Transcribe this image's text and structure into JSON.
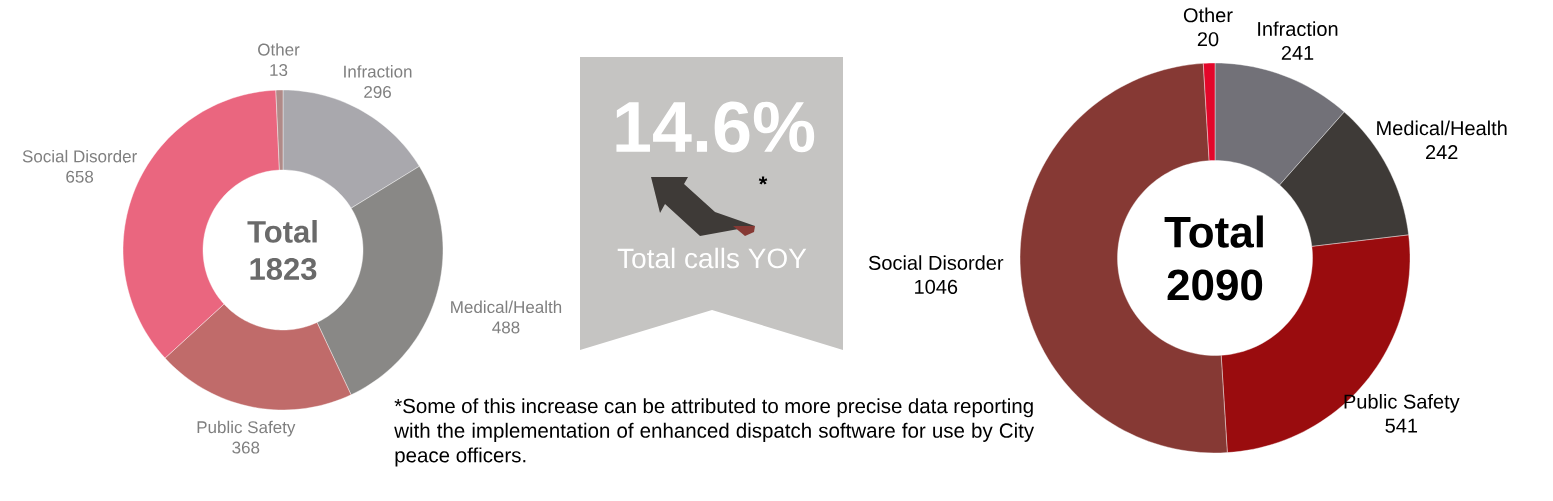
{
  "chart_data": [
    {
      "type": "donut",
      "title": "Total",
      "subtitle": "1823",
      "categories": [
        "Infraction",
        "Medical/Health",
        "Public Safety",
        "Social Disorder",
        "Other"
      ],
      "values": [
        296,
        488,
        368,
        658,
        13
      ],
      "colors": [
        "#a9a8ad",
        "#898886",
        "#c06b6a",
        "#ea667f",
        "#b08a88"
      ],
      "data_labels": true
    },
    {
      "type": "other",
      "title": "14.6%",
      "subtitle": "Total calls YOY",
      "annotations": [
        "*",
        "*Some of this increase can be attributed to more precise data reporting with the implementation of enhanced dispatch software for use by City peace officers."
      ]
    },
    {
      "type": "donut",
      "title": "Total",
      "subtitle": "2090",
      "categories": [
        "Infraction",
        "Medical/Health",
        "Public Safety",
        "Social Disorder",
        "Other"
      ],
      "values": [
        241,
        242,
        541,
        1046,
        20
      ],
      "colors": [
        "#727178",
        "#3e3a37",
        "#9a0c0e",
        "#863934",
        "#e3072a"
      ],
      "data_labels": true
    }
  ]
}
